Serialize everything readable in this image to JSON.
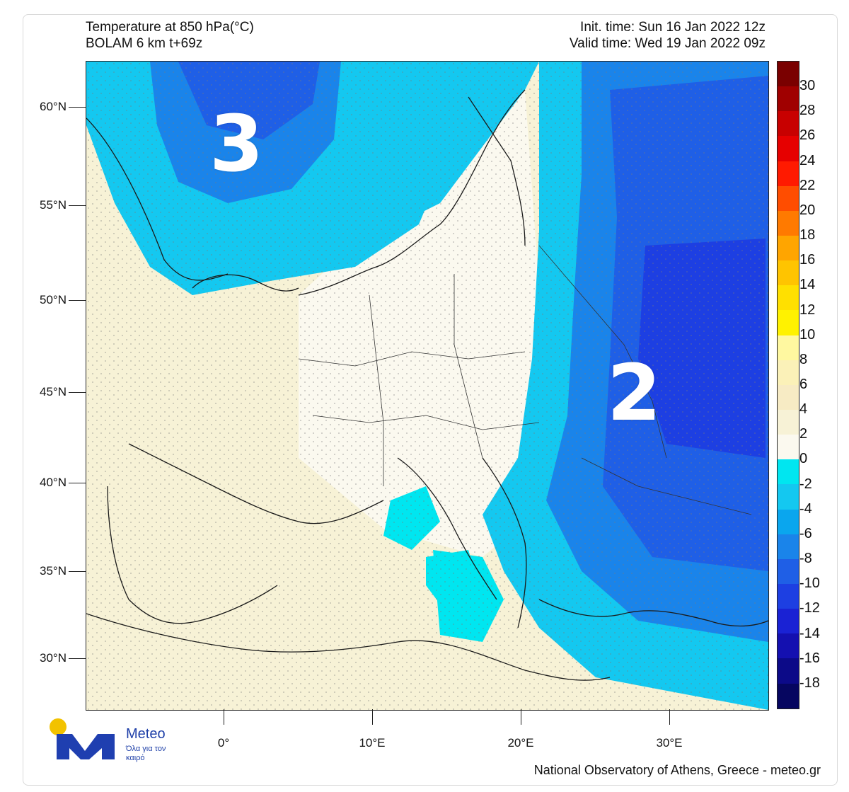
{
  "header": {
    "title_line1": "Temperature at 850 hPa(°C)",
    "title_line2": "BOLAM 6 km t+69z",
    "init_time": "Init. time: Sun 16 Jan 2022 12z",
    "valid_time": "Valid time: Wed 19 Jan 2022 09z"
  },
  "map": {
    "lat_labels": [
      "60°N",
      "55°N",
      "50°N",
      "45°N",
      "40°N",
      "35°N",
      "30°N"
    ],
    "lon_labels": [
      "0°",
      "10°E",
      "20°E",
      "30°E"
    ],
    "overlay_numbers": [
      "3",
      "2"
    ],
    "colors": {
      "land_warm": "#f7f2d6",
      "land_neutral": "#fbf9ef",
      "cold_light": "#00e0f0",
      "cold_mid": "#14b4f0",
      "cold_deep": "#1f6fe0",
      "cold_core": "#2a4ee0"
    }
  },
  "colorbar": {
    "labels": [
      "30",
      "28",
      "26",
      "24",
      "22",
      "20",
      "18",
      "16",
      "14",
      "12",
      "10",
      "8",
      "6",
      "4",
      "2",
      "0",
      "-2",
      "-4",
      "-6",
      "-8",
      "-10",
      "-12",
      "-14",
      "-16",
      "-18"
    ],
    "colors": [
      "#7a0000",
      "#a00000",
      "#c80000",
      "#e60000",
      "#ff1a00",
      "#ff4d00",
      "#ff7a00",
      "#ffa500",
      "#ffc400",
      "#ffe000",
      "#fff200",
      "#fff8a0",
      "#fbf1b8",
      "#f7ebc4",
      "#f7f2d6",
      "#fbf9ef",
      "#00e6f0",
      "#14c8f0",
      "#0aa6ee",
      "#1a84ea",
      "#1f5fe6",
      "#1d3fe2",
      "#1a22d4",
      "#1410b0",
      "#0c0a88",
      "#060660"
    ]
  },
  "branding": {
    "name": "Meteo",
    "tagline": "Όλα για τον καιρό",
    "credit": "National Observatory of Athens, Greece - meteo.gr"
  }
}
